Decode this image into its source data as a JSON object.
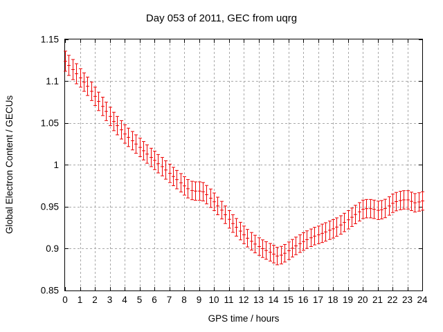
{
  "title": "Day 053 of 2011, GEC from uqrg",
  "colors": {
    "series": "#ee0000",
    "grid": "#a8a8a8",
    "axis": "#000000",
    "background": "#ffffff"
  },
  "chart_data": {
    "type": "scatter",
    "style": "yerrorbars",
    "title": "Day 053 of 2011, GEC from uqrg",
    "xlabel": "GPS time / hours",
    "ylabel": "Global Electron Content / GECUs",
    "xlim": [
      0,
      24
    ],
    "ylim": [
      0.85,
      1.15
    ],
    "grid": true,
    "legend": "none",
    "xticks": [
      0,
      1,
      2,
      3,
      4,
      5,
      6,
      7,
      8,
      9,
      10,
      11,
      12,
      13,
      14,
      15,
      16,
      17,
      18,
      19,
      20,
      21,
      22,
      23,
      24
    ],
    "xtick_labels": [
      "0",
      "1",
      "2",
      "3",
      "4",
      "5",
      "6",
      "7",
      "8",
      "9",
      "10",
      "11",
      "12",
      "13",
      "14",
      "15",
      "16",
      "17",
      "18",
      "19",
      "20",
      "21",
      "22",
      "23",
      "24"
    ],
    "yticks": [
      0.85,
      0.9,
      0.95,
      1,
      1.05,
      1.1,
      1.15
    ],
    "ytick_labels": [
      "0.85",
      "0.9",
      "0.95",
      "1",
      "1.05",
      "1.1",
      "1.15"
    ],
    "points": [
      [
        0.0,
        1.124,
        0.012
      ],
      [
        0.25,
        1.119,
        0.012
      ],
      [
        0.5,
        1.114,
        0.012
      ],
      [
        0.75,
        1.109,
        0.012
      ],
      [
        1.0,
        1.104,
        0.011
      ],
      [
        1.25,
        1.099,
        0.011
      ],
      [
        1.5,
        1.094,
        0.011
      ],
      [
        1.75,
        1.088,
        0.011
      ],
      [
        2.0,
        1.082,
        0.011
      ],
      [
        2.25,
        1.076,
        0.011
      ],
      [
        2.5,
        1.07,
        0.011
      ],
      [
        2.75,
        1.064,
        0.011
      ],
      [
        3.0,
        1.058,
        0.011
      ],
      [
        3.25,
        1.052,
        0.011
      ],
      [
        3.5,
        1.047,
        0.011
      ],
      [
        3.75,
        1.042,
        0.011
      ],
      [
        4.0,
        1.037,
        0.011
      ],
      [
        4.25,
        1.033,
        0.011
      ],
      [
        4.5,
        1.029,
        0.011
      ],
      [
        4.75,
        1.025,
        0.011
      ],
      [
        5.0,
        1.021,
        0.011
      ],
      [
        5.25,
        1.017,
        0.011
      ],
      [
        5.5,
        1.013,
        0.011
      ],
      [
        5.75,
        1.009,
        0.011
      ],
      [
        6.0,
        1.0055,
        0.011
      ],
      [
        6.25,
        1.0015,
        0.011
      ],
      [
        6.5,
        0.998,
        0.011
      ],
      [
        6.75,
        0.994,
        0.011
      ],
      [
        7.0,
        0.99,
        0.011
      ],
      [
        7.25,
        0.9862,
        0.011
      ],
      [
        7.5,
        0.9825,
        0.011
      ],
      [
        7.75,
        0.9787,
        0.011
      ],
      [
        8.0,
        0.975,
        0.011
      ],
      [
        8.25,
        0.9716,
        0.011
      ],
      [
        8.5,
        0.9695,
        0.011
      ],
      [
        8.75,
        0.9688,
        0.011
      ],
      [
        9.0,
        0.9688,
        0.011
      ],
      [
        9.25,
        0.968,
        0.011
      ],
      [
        9.5,
        0.9645,
        0.011
      ],
      [
        9.75,
        0.9603,
        0.011
      ],
      [
        10.0,
        0.956,
        0.0105
      ],
      [
        10.25,
        0.951,
        0.0105
      ],
      [
        10.5,
        0.946,
        0.0105
      ],
      [
        10.75,
        0.9405,
        0.0105
      ],
      [
        11.0,
        0.935,
        0.0105
      ],
      [
        11.25,
        0.93,
        0.0105
      ],
      [
        11.5,
        0.9255,
        0.0105
      ],
      [
        11.75,
        0.921,
        0.0105
      ],
      [
        12.0,
        0.9165,
        0.0105
      ],
      [
        12.25,
        0.9125,
        0.0105
      ],
      [
        12.5,
        0.9088,
        0.0105
      ],
      [
        12.75,
        0.9055,
        0.0105
      ],
      [
        13.0,
        0.9025,
        0.0105
      ],
      [
        13.25,
        0.9,
        0.0105
      ],
      [
        13.5,
        0.8978,
        0.0105
      ],
      [
        13.75,
        0.8957,
        0.0105
      ],
      [
        14.0,
        0.8935,
        0.0105
      ],
      [
        14.25,
        0.8912,
        0.0105
      ],
      [
        14.5,
        0.8922,
        0.0105
      ],
      [
        14.75,
        0.8945,
        0.0105
      ],
      [
        15.0,
        0.8975,
        0.0105
      ],
      [
        15.25,
        0.9005,
        0.0105
      ],
      [
        15.5,
        0.9033,
        0.0105
      ],
      [
        15.75,
        0.906,
        0.0105
      ],
      [
        16.0,
        0.9085,
        0.0105
      ],
      [
        16.25,
        0.9108,
        0.0105
      ],
      [
        16.5,
        0.913,
        0.0105
      ],
      [
        16.75,
        0.915,
        0.0105
      ],
      [
        17.0,
        0.9165,
        0.0105
      ],
      [
        17.25,
        0.9183,
        0.011
      ],
      [
        17.5,
        0.92,
        0.011
      ],
      [
        17.75,
        0.922,
        0.011
      ],
      [
        18.0,
        0.9237,
        0.011
      ],
      [
        18.25,
        0.9258,
        0.011
      ],
      [
        18.5,
        0.9283,
        0.011
      ],
      [
        18.75,
        0.9313,
        0.011
      ],
      [
        19.0,
        0.9345,
        0.011
      ],
      [
        19.25,
        0.9375,
        0.011
      ],
      [
        19.5,
        0.9408,
        0.011
      ],
      [
        19.75,
        0.944,
        0.011
      ],
      [
        20.0,
        0.947,
        0.011
      ],
      [
        20.25,
        0.9478,
        0.011
      ],
      [
        20.5,
        0.9478,
        0.011
      ],
      [
        20.75,
        0.947,
        0.011
      ],
      [
        21.0,
        0.9458,
        0.011
      ],
      [
        21.25,
        0.9465,
        0.011
      ],
      [
        21.5,
        0.948,
        0.011
      ],
      [
        21.75,
        0.951,
        0.011
      ],
      [
        22.0,
        0.9542,
        0.011
      ],
      [
        22.25,
        0.9562,
        0.011
      ],
      [
        22.5,
        0.9575,
        0.011
      ],
      [
        22.75,
        0.9583,
        0.011
      ],
      [
        23.0,
        0.9583,
        0.011
      ],
      [
        23.25,
        0.9565,
        0.011
      ],
      [
        23.5,
        0.9548,
        0.011
      ],
      [
        23.75,
        0.9558,
        0.011
      ],
      [
        24.0,
        0.957,
        0.011
      ]
    ]
  }
}
